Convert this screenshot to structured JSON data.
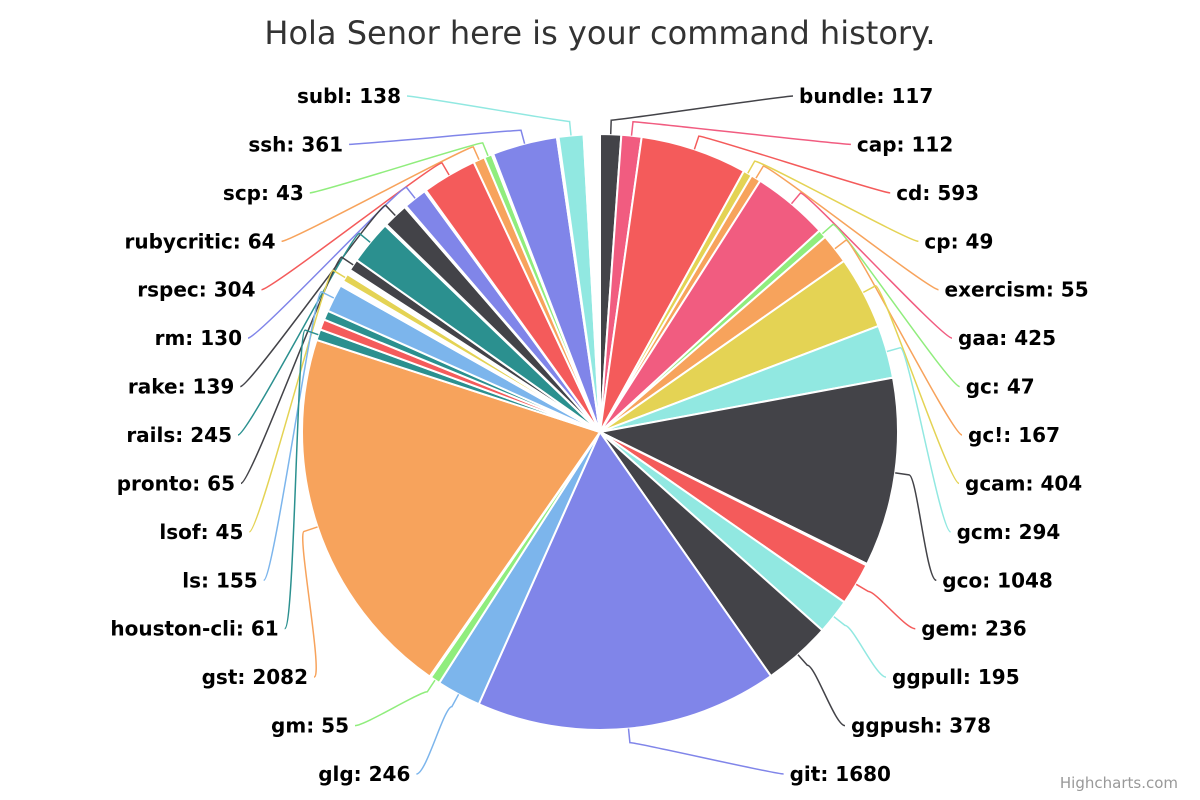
{
  "chart_data": {
    "type": "pie",
    "title": "Hola Senor here is your command history.",
    "credits": "Highcharts.com",
    "label_format": "name: value",
    "slices": [
      {
        "name": "bundle",
        "value": 117,
        "color": "#434348"
      },
      {
        "name": "cap",
        "value": 112,
        "color": "#f15c80"
      },
      {
        "name": "cd",
        "value": 593,
        "color": "#f45b5b"
      },
      {
        "name": "cp",
        "value": 49,
        "color": "#e4d354"
      },
      {
        "name": "exercism",
        "value": 55,
        "color": "#f7a35c"
      },
      {
        "name": "gaa",
        "value": 425,
        "color": "#f15c80"
      },
      {
        "name": "gc",
        "value": 47,
        "color": "#90ed7d"
      },
      {
        "name": "gc!",
        "value": 167,
        "color": "#f7a35c"
      },
      {
        "name": "gcam",
        "value": 404,
        "color": "#e4d354"
      },
      {
        "name": "gcm",
        "value": 294,
        "color": "#91e8e1"
      },
      {
        "name": "gco",
        "value": 1048,
        "color": "#434348"
      },
      {
        "name": "",
        "value": 8,
        "color": "#90ed7d"
      },
      {
        "name": "gem",
        "value": 236,
        "color": "#f45b5b"
      },
      {
        "name": "ggpull",
        "value": 195,
        "color": "#91e8e1"
      },
      {
        "name": "ggpush",
        "value": 378,
        "color": "#434348"
      },
      {
        "name": "git",
        "value": 1680,
        "color": "#8085e9"
      },
      {
        "name": "glg",
        "value": 246,
        "color": "#7cb5ec"
      },
      {
        "name": "gm",
        "value": 55,
        "color": "#90ed7d"
      },
      {
        "name": "",
        "value": 8,
        "color": "#f7a35c"
      },
      {
        "name": "gst",
        "value": 2082,
        "color": "#f7a35c"
      },
      {
        "name": "houston-cli",
        "value": 61,
        "color": "#2b908f"
      },
      {
        "name": "",
        "value": 58,
        "color": "#f45b5b"
      },
      {
        "name": "",
        "value": 52,
        "color": "#2b908f"
      },
      {
        "name": "ls",
        "value": 155,
        "color": "#7cb5ec"
      },
      {
        "name": "",
        "value": 9,
        "color": "#434348"
      },
      {
        "name": "",
        "value": 10,
        "color": "#90ed7d"
      },
      {
        "name": "",
        "value": 9,
        "color": "#f7a35c"
      },
      {
        "name": "lsof",
        "value": 45,
        "color": "#e4d354"
      },
      {
        "name": "",
        "value": 9,
        "color": "#2b908f"
      },
      {
        "name": "",
        "value": 9,
        "color": "#f15c80"
      },
      {
        "name": "",
        "value": 9,
        "color": "#8085e9"
      },
      {
        "name": "pronto",
        "value": 65,
        "color": "#434348"
      },
      {
        "name": "rails",
        "value": 245,
        "color": "#2b908f"
      },
      {
        "name": "",
        "value": 9,
        "color": "#7cb5ec"
      },
      {
        "name": "rake",
        "value": 139,
        "color": "#434348"
      },
      {
        "name": "",
        "value": 9,
        "color": "#f7a35c"
      },
      {
        "name": "rm",
        "value": 130,
        "color": "#8085e9"
      },
      {
        "name": "",
        "value": 9,
        "color": "#91e8e1"
      },
      {
        "name": "rspec",
        "value": 304,
        "color": "#f45b5b"
      },
      {
        "name": "rubycritic",
        "value": 64,
        "color": "#f7a35c"
      },
      {
        "name": "scp",
        "value": 43,
        "color": "#90ed7d"
      },
      {
        "name": "",
        "value": 9,
        "color": "#e4d354"
      },
      {
        "name": "ssh",
        "value": 361,
        "color": "#8085e9"
      },
      {
        "name": "",
        "value": 9,
        "color": "#434348"
      },
      {
        "name": "subl",
        "value": 138,
        "color": "#91e8e1"
      },
      {
        "name": "",
        "value": 9,
        "color": "#7cb5ec"
      },
      {
        "name": "",
        "value": 9,
        "color": "#434348"
      },
      {
        "name": "",
        "value": 9,
        "color": "#f45b5b"
      },
      {
        "name": "",
        "value": 9,
        "color": "#f7a35c"
      },
      {
        "name": "",
        "value": 9,
        "color": "#8085e9"
      },
      {
        "name": "",
        "value": 9,
        "color": "#e4d354"
      },
      {
        "name": "",
        "value": 9,
        "color": "#f7a35c"
      },
      {
        "name": "",
        "value": 9,
        "color": "#434348"
      },
      {
        "name": "",
        "value": 9,
        "color": "#2b908f"
      },
      {
        "name": "",
        "value": 9,
        "color": "#434348"
      }
    ]
  }
}
